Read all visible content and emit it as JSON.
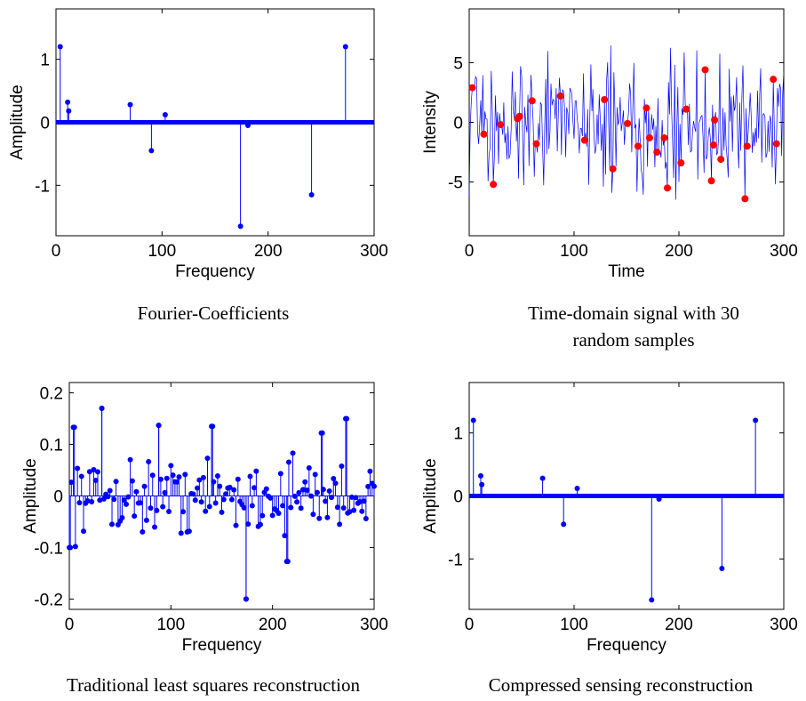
{
  "chart_data": [
    {
      "type": "stem",
      "caption": "Fourier-Coefficients",
      "xlabel": "Frequency",
      "ylabel": "Amplitude",
      "xlim": [
        0,
        300
      ],
      "ylim": [
        -1.8,
        1.8
      ],
      "xticks": [
        0,
        100,
        200,
        300
      ],
      "yticks": [
        -1,
        0,
        1
      ],
      "ytick_labels": [
        "-1",
        "0",
        "1"
      ],
      "grid": false,
      "color": "#0000ff",
      "spikes": [
        {
          "x": 4,
          "y": 1.2
        },
        {
          "x": 11,
          "y": 0.32
        },
        {
          "x": 12,
          "y": 0.18
        },
        {
          "x": 70,
          "y": 0.28
        },
        {
          "x": 90,
          "y": -0.45
        },
        {
          "x": 103,
          "y": 0.12
        },
        {
          "x": 174,
          "y": -1.65
        },
        {
          "x": 181,
          "y": -0.05
        },
        {
          "x": 241,
          "y": -1.15
        },
        {
          "x": 273,
          "y": 1.2
        }
      ]
    },
    {
      "type": "line",
      "caption": "Time-domain signal with 30 random samples",
      "xlabel": "Time",
      "ylabel": "Intensity",
      "xlim": [
        0,
        300
      ],
      "ylim": [
        -9.5,
        9.5
      ],
      "xticks": [
        0,
        100,
        200,
        300
      ],
      "yticks": [
        -5,
        0,
        5
      ],
      "ytick_labels": [
        "-5",
        "0",
        "5"
      ],
      "grid": false,
      "line_color": "#0000ff",
      "sample_color": "#ff0000",
      "samples": [
        {
          "x": 3,
          "y": 2.9
        },
        {
          "x": 14,
          "y": -1.0
        },
        {
          "x": 23,
          "y": -5.2
        },
        {
          "x": 30,
          "y": -0.2
        },
        {
          "x": 46,
          "y": 0.3
        },
        {
          "x": 48,
          "y": 0.5
        },
        {
          "x": 60,
          "y": 1.8
        },
        {
          "x": 64,
          "y": -1.8
        },
        {
          "x": 87,
          "y": 2.2
        },
        {
          "x": 110,
          "y": -1.5
        },
        {
          "x": 129,
          "y": 1.9
        },
        {
          "x": 137,
          "y": -3.9
        },
        {
          "x": 151,
          "y": -0.1
        },
        {
          "x": 161,
          "y": -2.0
        },
        {
          "x": 169,
          "y": 1.2
        },
        {
          "x": 172,
          "y": -1.3
        },
        {
          "x": 179,
          "y": -2.5
        },
        {
          "x": 186,
          "y": -1.3
        },
        {
          "x": 189,
          "y": -5.5
        },
        {
          "x": 202,
          "y": -3.4
        },
        {
          "x": 207,
          "y": 1.1
        },
        {
          "x": 225,
          "y": 4.4
        },
        {
          "x": 231,
          "y": -4.9
        },
        {
          "x": 233,
          "y": -1.9
        },
        {
          "x": 234,
          "y": 0.2
        },
        {
          "x": 240,
          "y": -3.1
        },
        {
          "x": 263,
          "y": -6.4
        },
        {
          "x": 265,
          "y": -2.0
        },
        {
          "x": 290,
          "y": 3.6
        },
        {
          "x": 293,
          "y": -1.8
        }
      ]
    },
    {
      "type": "stem",
      "caption": "Traditional least squares reconstruction",
      "xlabel": "Frequency",
      "ylabel": "Amplitude",
      "xlim": [
        0,
        300
      ],
      "ylim": [
        -0.22,
        0.22
      ],
      "xticks": [
        0,
        100,
        200,
        300
      ],
      "yticks": [
        -0.2,
        -0.1,
        0,
        0.1,
        0.2
      ],
      "ytick_labels": [
        "-0.2",
        "-0.1",
        "0",
        "0.1",
        "0.2"
      ],
      "grid": false,
      "color": "#0000ff",
      "dense": true,
      "highlights": [
        {
          "x": 1,
          "y": -0.1
        },
        {
          "x": 5,
          "y": 0.133
        },
        {
          "x": 32,
          "y": 0.17
        },
        {
          "x": 174,
          "y": -0.2
        },
        {
          "x": 215,
          "y": -0.127
        },
        {
          "x": 273,
          "y": 0.15
        },
        {
          "x": 88,
          "y": 0.137
        },
        {
          "x": 141,
          "y": 0.135
        },
        {
          "x": 249,
          "y": 0.122
        }
      ]
    },
    {
      "type": "stem",
      "caption": "Compressed sensing reconstruction",
      "xlabel": "Frequency",
      "ylabel": "Amplitude",
      "xlim": [
        0,
        300
      ],
      "ylim": [
        -1.8,
        1.8
      ],
      "xticks": [
        0,
        100,
        200,
        300
      ],
      "yticks": [
        -1,
        0,
        1
      ],
      "ytick_labels": [
        "-1",
        "0",
        "1"
      ],
      "grid": false,
      "color": "#0000ff",
      "spikes": [
        {
          "x": 4,
          "y": 1.2
        },
        {
          "x": 11,
          "y": 0.32
        },
        {
          "x": 12,
          "y": 0.18
        },
        {
          "x": 70,
          "y": 0.28
        },
        {
          "x": 90,
          "y": -0.45
        },
        {
          "x": 103,
          "y": 0.12
        },
        {
          "x": 174,
          "y": -1.65
        },
        {
          "x": 181,
          "y": -0.05
        },
        {
          "x": 241,
          "y": -1.15
        },
        {
          "x": 273,
          "y": 1.2
        }
      ]
    }
  ]
}
